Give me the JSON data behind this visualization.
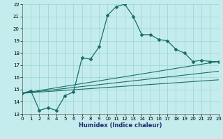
{
  "xlabel": "Humidex (Indice chaleur)",
  "bg_color": "#c5ecec",
  "line_color": "#1a6e6a",
  "grid_color": "#92d4d4",
  "xlim": [
    0,
    23
  ],
  "ylim": [
    13,
    22
  ],
  "xticks": [
    0,
    1,
    2,
    3,
    4,
    5,
    6,
    7,
    8,
    9,
    10,
    11,
    12,
    13,
    14,
    15,
    16,
    17,
    18,
    19,
    20,
    21,
    22,
    23
  ],
  "yticks": [
    13,
    14,
    15,
    16,
    17,
    18,
    19,
    20,
    21,
    22
  ],
  "curve_x": [
    0,
    1,
    2,
    3,
    4,
    5,
    6,
    7,
    8,
    9,
    10,
    11,
    12,
    13,
    14,
    15,
    16,
    17,
    18,
    19,
    20,
    21,
    22,
    23
  ],
  "curve_y": [
    14.7,
    14.9,
    13.3,
    13.5,
    13.3,
    14.5,
    14.8,
    17.6,
    17.5,
    18.5,
    21.1,
    21.8,
    22.0,
    21.0,
    19.5,
    19.5,
    19.1,
    19.0,
    18.3,
    18.0,
    17.3,
    17.4,
    17.3,
    17.3
  ],
  "diag_lines": [
    {
      "x0": 0,
      "y0": 14.7,
      "x1": 23,
      "y1": 17.3
    },
    {
      "x0": 0,
      "y0": 14.7,
      "x1": 23,
      "y1": 16.5
    },
    {
      "x0": 0,
      "y0": 14.7,
      "x1": 23,
      "y1": 15.8
    }
  ],
  "xlabel_fontsize": 6,
  "tick_fontsize": 5
}
